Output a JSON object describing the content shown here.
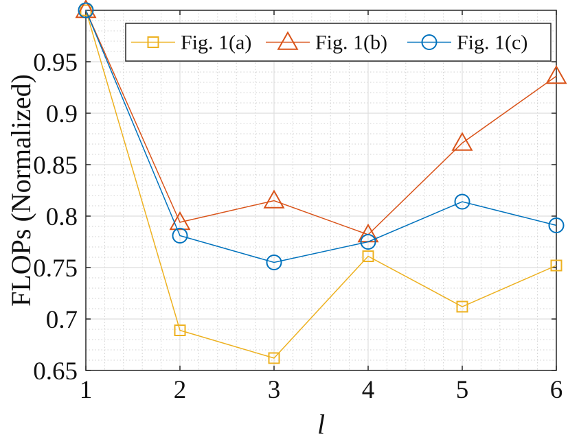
{
  "chart_data": {
    "type": "line",
    "xlabel": "l",
    "ylabel": "FLOPs (Normalized)",
    "x": [
      1,
      2,
      3,
      4,
      5,
      6
    ],
    "xlim": [
      1,
      6
    ],
    "ylim": [
      0.65,
      1.0
    ],
    "xticks": [
      "1",
      "2",
      "3",
      "4",
      "5",
      "6"
    ],
    "yticks": [
      "0.65",
      "0.7",
      "0.75",
      "0.8",
      "0.85",
      "0.9",
      "0.95"
    ],
    "grid": true,
    "minor_grid": true,
    "legend_position": "top-right",
    "legend_orientation": "horizontal",
    "series": [
      {
        "name": "Fig. 1(a)",
        "marker": "square",
        "color": "#EDB120",
        "values": [
          1.0,
          0.689,
          0.662,
          0.761,
          0.712,
          0.752
        ]
      },
      {
        "name": "Fig. 1(b)",
        "marker": "triangle",
        "color": "#D95319",
        "values": [
          1.0,
          0.794,
          0.815,
          0.782,
          0.871,
          0.936
        ]
      },
      {
        "name": "Fig. 1(c)",
        "marker": "circle",
        "color": "#0072BD",
        "values": [
          1.0,
          0.781,
          0.755,
          0.775,
          0.814,
          0.791
        ]
      }
    ]
  }
}
